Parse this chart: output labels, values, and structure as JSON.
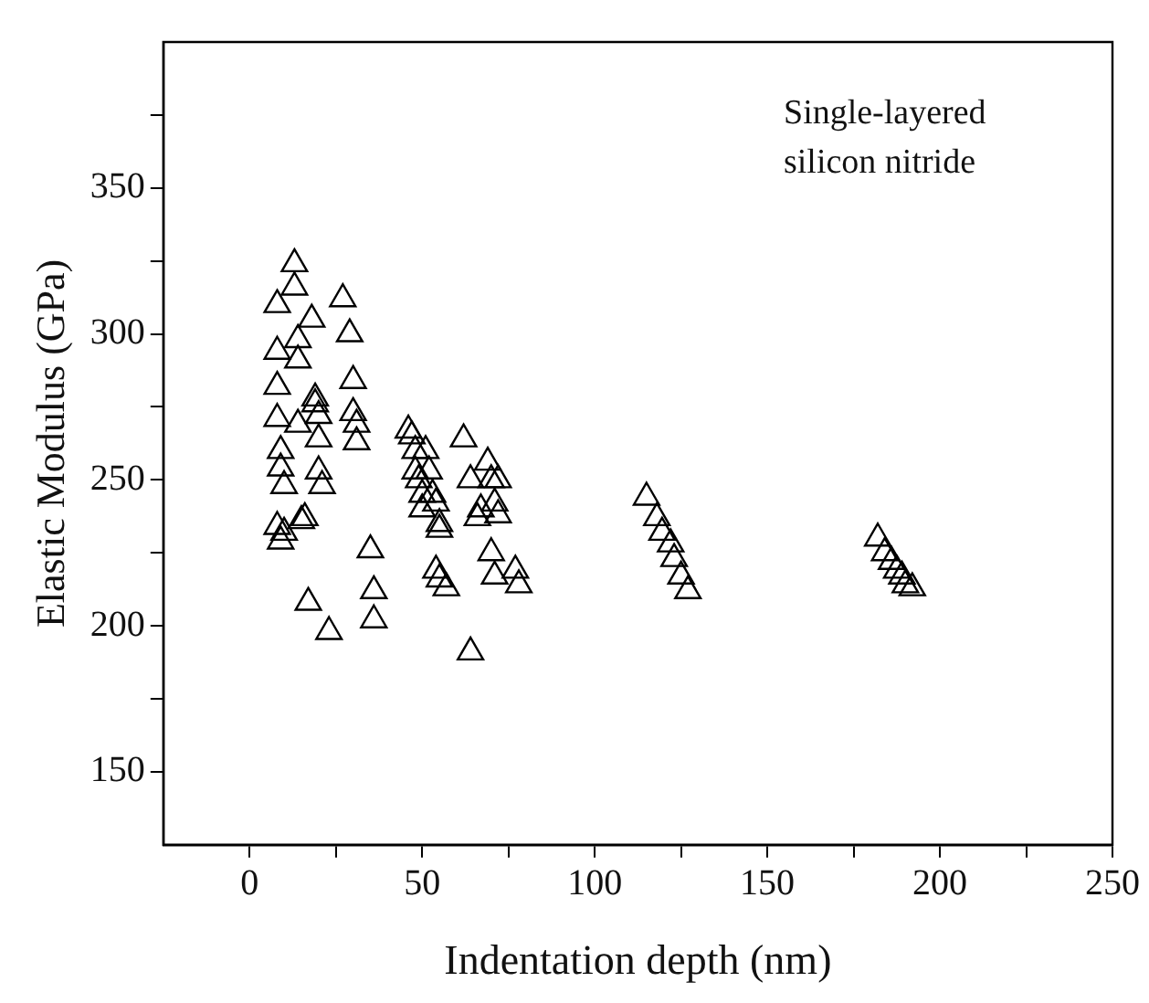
{
  "chart_data": {
    "type": "scatter",
    "xlabel": "Indentation depth (nm)",
    "ylabel": "Elastic Modulus (GPa)",
    "annotations": [
      "Single-layered\nsilicon nitride"
    ],
    "marker": "triangle",
    "xlim": [
      -25,
      250
    ],
    "xticks": [
      0,
      {
        "value": 25,
        "label": null
      },
      50,
      {
        "value": 75,
        "label": null
      },
      100,
      {
        "value": 125,
        "label": null
      },
      150,
      {
        "value": 175,
        "label": null
      },
      200,
      {
        "value": 225,
        "label": null
      },
      250
    ],
    "ylim": [
      125,
      400
    ],
    "yticks": [
      150,
      {
        "value": 175,
        "label": null
      },
      200,
      {
        "value": 225,
        "label": null
      },
      250,
      {
        "value": 275,
        "label": null
      },
      300,
      {
        "value": 325,
        "label": null
      },
      350,
      {
        "value": 375,
        "label": null
      }
    ],
    "series": [
      {
        "color": "#000000",
        "x": [
          13,
          13,
          8,
          18,
          14,
          8,
          14,
          8,
          19,
          19,
          20,
          8,
          14,
          20,
          9,
          9,
          10,
          20,
          21,
          8,
          10,
          9,
          15,
          16,
          17,
          23,
          27,
          29,
          30,
          30,
          31,
          31,
          35,
          36,
          36,
          46,
          47,
          48,
          51,
          48,
          52,
          49,
          50,
          53,
          50,
          54,
          55,
          55,
          54,
          55,
          57,
          62,
          64,
          67,
          66,
          69,
          70,
          72,
          71,
          72,
          70,
          71,
          77,
          78,
          64,
          115,
          118,
          119.5,
          122,
          123,
          125,
          127,
          182,
          184,
          186,
          187.5,
          189,
          190,
          192
        ],
        "values": [
          324,
          316,
          310,
          305,
          298,
          294,
          291,
          282,
          278,
          276,
          272,
          271,
          269,
          264,
          260,
          254,
          248,
          253,
          248,
          234,
          232,
          229,
          236,
          237,
          208,
          198,
          312,
          300,
          284,
          273,
          269,
          263,
          226,
          212,
          202,
          267,
          265,
          260,
          260,
          253,
          253,
          250,
          245,
          245,
          240,
          242,
          235,
          233,
          219,
          216,
          213,
          264,
          250,
          240,
          237,
          256,
          250,
          250,
          242,
          238,
          225,
          217,
          219,
          214,
          191,
          244,
          237,
          232,
          228,
          223,
          217,
          212,
          230,
          225,
          222,
          219,
          217,
          214,
          213
        ]
      }
    ]
  }
}
